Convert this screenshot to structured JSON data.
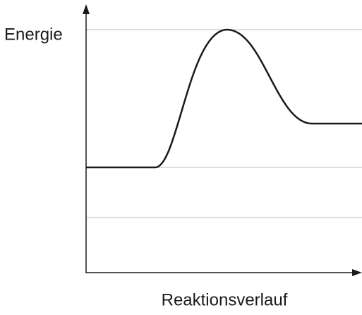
{
  "y_axis_label": "Energie",
  "x_axis_label": "Reaktionsverlauf"
}
